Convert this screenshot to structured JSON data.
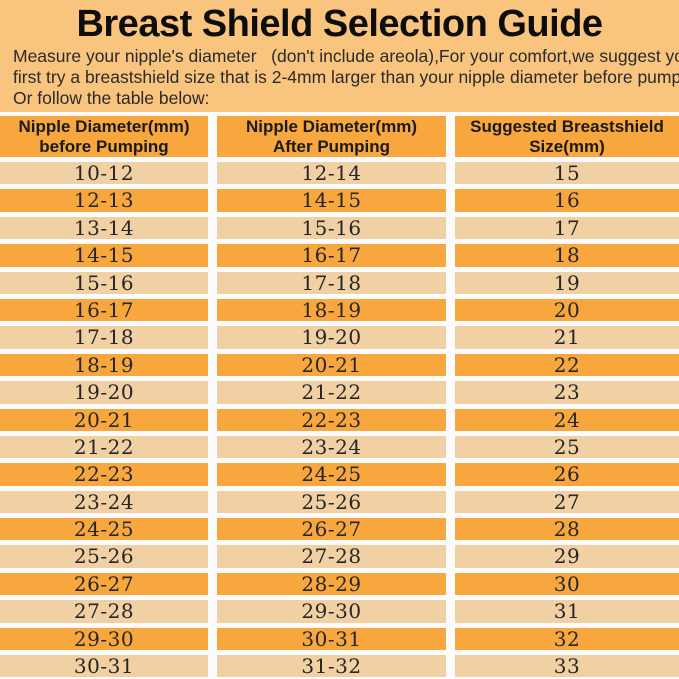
{
  "page": {
    "title": "Breast Shield Selection Guide",
    "intro_lines": [
      "Measure your nipple's diameter   (don't include areola),For your comfort,we suggest you",
      "first try a breastshield size that is 2-4mm larger than your nipple diameter before pumping.",
      "Or follow the table below:"
    ]
  },
  "colors": {
    "page_bg": "#F9C57E",
    "row_orange": "#F8A73E",
    "row_light": "#F1D1A3",
    "separator": "#FCFCFC",
    "text_dark": "#1E1E1E"
  },
  "table": {
    "headers": [
      {
        "line1": "Nipple Diameter(mm)",
        "line2": "before Pumping"
      },
      {
        "line1": "Nipple Diameter(mm)",
        "line2": "After Pumping"
      },
      {
        "line1": "Suggested Breastshield",
        "line2": "Size(mm)"
      }
    ],
    "rows": [
      [
        "10-12",
        "12-14",
        "15"
      ],
      [
        "12-13",
        "14-15",
        "16"
      ],
      [
        "13-14",
        "15-16",
        "17"
      ],
      [
        "14-15",
        "16-17",
        "18"
      ],
      [
        "15-16",
        "17-18",
        "19"
      ],
      [
        "16-17",
        "18-19",
        "20"
      ],
      [
        "17-18",
        "19-20",
        "21"
      ],
      [
        "18-19",
        "20-21",
        "22"
      ],
      [
        "19-20",
        "21-22",
        "23"
      ],
      [
        "20-21",
        "22-23",
        "24"
      ],
      [
        "21-22",
        "23-24",
        "25"
      ],
      [
        "22-23",
        "24-25",
        "26"
      ],
      [
        "23-24",
        "25-26",
        "27"
      ],
      [
        "24-25",
        "26-27",
        "28"
      ],
      [
        "25-26",
        "27-28",
        "29"
      ],
      [
        "26-27",
        "28-29",
        "30"
      ],
      [
        "27-28",
        "29-30",
        "31"
      ],
      [
        "29-30",
        "30-31",
        "32"
      ],
      [
        "30-31",
        "31-32",
        "33"
      ]
    ]
  }
}
